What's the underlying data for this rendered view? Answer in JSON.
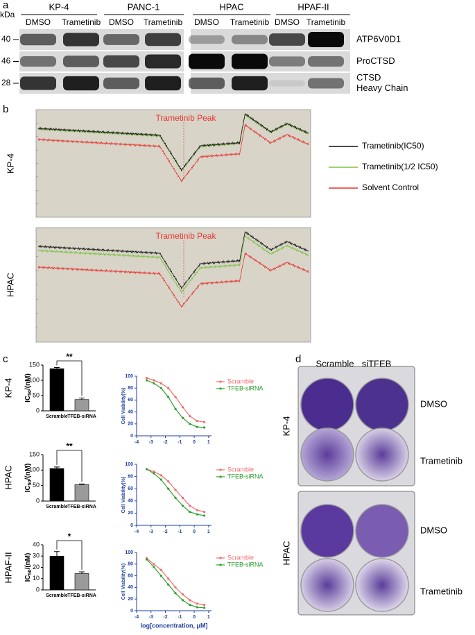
{
  "panel_labels": [
    "a",
    "b",
    "c",
    "d"
  ],
  "blot": {
    "unit": "kDa",
    "cell_lines": [
      {
        "name": "KP-4",
        "lanes": [
          "DMSO",
          "Trametinib"
        ]
      },
      {
        "name": "PANC-1",
        "lanes": [
          "DMSO",
          "Trametinib"
        ]
      },
      {
        "name": "HPAC",
        "lanes": [
          "DMSO",
          "Trametinib"
        ]
      },
      {
        "name": "HPAF-II",
        "lanes": [
          "DMSO",
          "Trametinib"
        ]
      }
    ],
    "markers": [
      40,
      46,
      28
    ],
    "proteins": [
      [
        "ATP6V0D1"
      ],
      [
        "ProCTSD"
      ],
      [
        "CTSD",
        "Heavy Chain"
      ]
    ]
  },
  "chromatogram": {
    "rows": [
      "KP-4",
      "HPAC"
    ],
    "peak_label": "Trametinib Peak",
    "legend": [
      {
        "name": "Trametinib(IC50)",
        "color": "#111111"
      },
      {
        "name": "Trametinib(1/2 IC50)",
        "color": "#7cc242"
      },
      {
        "name": "Solvent Control",
        "color": "#e8322f"
      }
    ]
  },
  "panel_c_rows": [
    "KP-4",
    "HPAC",
    "HPAF-II"
  ],
  "chart_data": [
    {
      "type": "bar",
      "ylabel": [
        "IC",
        "50",
        "/(nM)"
      ],
      "categories": [
        "Scramble",
        "TFEB-siRNA"
      ],
      "values": [
        138,
        37
      ],
      "errors": [
        4,
        5
      ],
      "colors": [
        "#000000",
        "#9a9a9a"
      ],
      "ylim": [
        0,
        150
      ],
      "yticks": [
        0,
        50,
        100,
        150
      ],
      "significance": "**"
    },
    {
      "type": "line",
      "ylabel": "Cell Viability(%)",
      "x": [
        -3.3,
        -2.8,
        -2.3,
        -1.8,
        -1.3,
        -0.8,
        -0.3,
        0.2,
        0.7
      ],
      "series": [
        {
          "name": "Scramble",
          "color": "#f26b6b",
          "values": [
            97,
            93,
            88,
            80,
            65,
            48,
            33,
            25,
            23
          ]
        },
        {
          "name": "TFEB-siRNA",
          "color": "#2ca02c",
          "values": [
            93,
            88,
            80,
            65,
            45,
            30,
            20,
            15,
            14
          ]
        }
      ],
      "xlim": [
        -4,
        1.2
      ],
      "xticks": [
        -4,
        -3,
        -2,
        -1,
        0,
        1
      ],
      "ylim": [
        0,
        100
      ],
      "yticks": [
        0,
        20,
        40,
        60,
        80,
        100
      ]
    },
    {
      "type": "bar",
      "ylabel": [
        "IC",
        "50",
        "/(nM)"
      ],
      "categories": [
        "Scramble",
        "TFEB-siRNA"
      ],
      "values": [
        105,
        53
      ],
      "errors": [
        5,
        2
      ],
      "colors": [
        "#000000",
        "#9a9a9a"
      ],
      "ylim": [
        0,
        150
      ],
      "yticks": [
        0,
        50,
        100,
        150
      ],
      "significance": "**"
    },
    {
      "type": "line",
      "ylabel": "Cell Viability(%)",
      "x": [
        -3.3,
        -2.8,
        -2.3,
        -1.8,
        -1.3,
        -0.8,
        -0.3,
        0.2,
        0.7
      ],
      "series": [
        {
          "name": "Scramble",
          "color": "#f26b6b",
          "values": [
            92,
            88,
            82,
            72,
            58,
            45,
            32,
            25,
            22
          ]
        },
        {
          "name": "TFEB-siRNA",
          "color": "#2ca02c",
          "values": [
            92,
            85,
            75,
            60,
            45,
            32,
            22,
            18,
            16
          ]
        }
      ],
      "xlim": [
        -4,
        1.2
      ],
      "xticks": [
        -4,
        -3,
        -2,
        -1,
        0,
        1
      ],
      "ylim": [
        0,
        100
      ],
      "yticks": [
        0,
        20,
        40,
        60,
        80,
        100
      ]
    },
    {
      "type": "bar",
      "ylabel": [
        "IC",
        "50",
        "/(nM)"
      ],
      "categories": [
        "Scramble",
        "TFEB-siRNA"
      ],
      "values": [
        30,
        14.5
      ],
      "errors": [
        4,
        1.5
      ],
      "colors": [
        "#000000",
        "#9a9a9a"
      ],
      "ylim": [
        0,
        40
      ],
      "yticks": [
        0,
        10,
        20,
        30,
        40
      ],
      "significance": "*"
    },
    {
      "type": "line",
      "ylabel": "Cell Viability(%)",
      "xlabel": "log[concentration, μM]",
      "x": [
        -3.3,
        -2.8,
        -2.3,
        -1.8,
        -1.3,
        -0.8,
        -0.3,
        0.2,
        0.7
      ],
      "series": [
        {
          "name": "Scramble",
          "color": "#f26b6b",
          "values": [
            90,
            80,
            70,
            55,
            40,
            28,
            18,
            12,
            10
          ]
        },
        {
          "name": "TFEB-siRNA",
          "color": "#2ca02c",
          "values": [
            88,
            75,
            60,
            45,
            30,
            18,
            10,
            6,
            5
          ]
        }
      ],
      "xlim": [
        -4,
        1.2
      ],
      "xticks": [
        -4,
        -3,
        -2,
        -1,
        0,
        1
      ],
      "ylim": [
        0,
        100
      ],
      "yticks": [
        0,
        20,
        40,
        60,
        80,
        100
      ]
    }
  ],
  "plates": {
    "columns": [
      "Scramble",
      "siTFEB"
    ],
    "rows": [
      "DMSO",
      "Trametinib"
    ],
    "cell_lines": [
      "KP-4",
      "HPAC"
    ]
  }
}
